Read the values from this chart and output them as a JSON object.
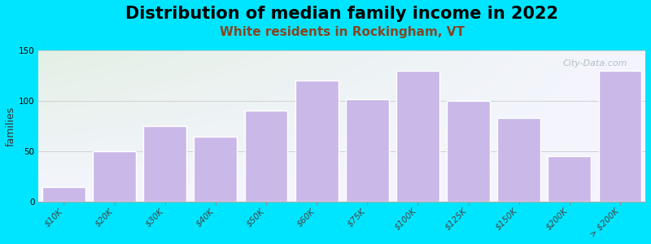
{
  "title": "Distribution of median family income in 2022",
  "subtitle": "White residents in Rockingham, VT",
  "categories": [
    "$10K",
    "$20K",
    "$30K",
    "$40K",
    "$50K",
    "$60K",
    "$75K",
    "$100K",
    "$125K",
    "$150K",
    "$200K",
    "> $200K"
  ],
  "values": [
    15,
    50,
    75,
    65,
    90,
    120,
    102,
    130,
    100,
    83,
    45,
    130
  ],
  "bar_color": "#c9b8e8",
  "bar_edge_color": "#ffffff",
  "background_outer": "#00e5ff",
  "background_plot_top": "#e2f0e2",
  "background_plot_bottom": "#f5f5ff",
  "ylabel": "families",
  "ylim": [
    0,
    150
  ],
  "yticks": [
    0,
    50,
    100,
    150
  ],
  "title_fontsize": 15,
  "subtitle_fontsize": 11,
  "subtitle_color": "#884422",
  "ylabel_fontsize": 9,
  "tick_fontsize": 7.5,
  "watermark": "City-Data.com",
  "watermark_color": "#aabbbb",
  "bar_widths": [
    1,
    1,
    1,
    1,
    1,
    1,
    1,
    1,
    1,
    1,
    2,
    3
  ]
}
